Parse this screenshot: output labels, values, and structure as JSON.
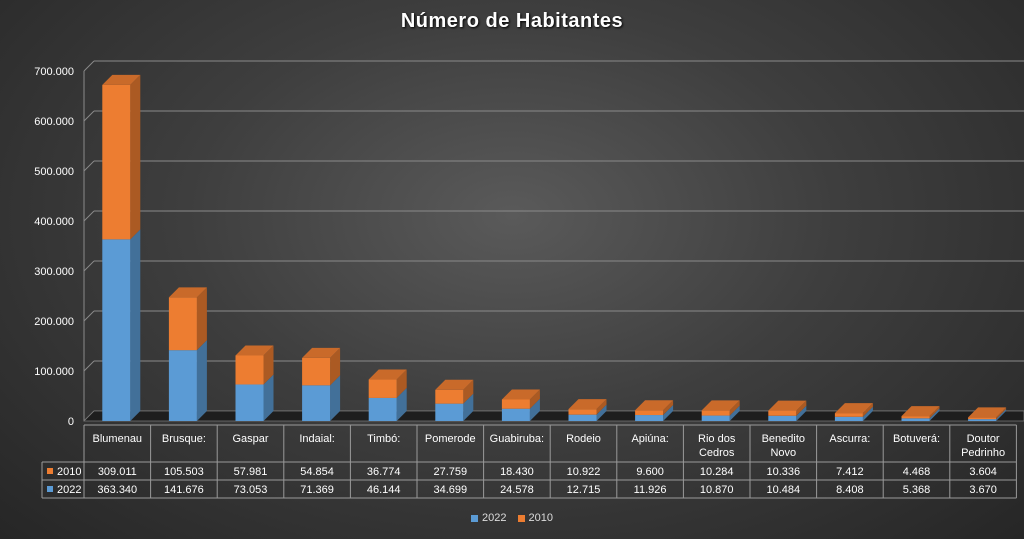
{
  "chart_data": {
    "type": "bar",
    "stacked": true,
    "three_d": true,
    "title": "Número de Habitantes",
    "categories": [
      "Blumenau",
      "Brusque:",
      "Gaspar",
      "Indaial:",
      "Timbó:",
      "Pomerode",
      "Guabiruba:",
      "Rodeio",
      "Apiúna:",
      "Rio dos Cedros",
      "Benedito Novo",
      "Ascurra:",
      "Botuverá:",
      "Doutor Pedrinho"
    ],
    "category_lines": [
      [
        "Blumenau"
      ],
      [
        "Brusque:"
      ],
      [
        "Gaspar"
      ],
      [
        "Indaial:"
      ],
      [
        "Timbó:"
      ],
      [
        "Pomerode"
      ],
      [
        "Guabiruba:"
      ],
      [
        "Rodeio"
      ],
      [
        "Apiúna:"
      ],
      [
        "Rio dos",
        "Cedros"
      ],
      [
        "Benedito",
        "Novo"
      ],
      [
        "Ascurra:"
      ],
      [
        "Botuverá:"
      ],
      [
        "Doutor",
        "Pedrinho"
      ]
    ],
    "series": [
      {
        "name": "2022",
        "color": "#5b9bd5",
        "values": [
          363340,
          141676,
          73053,
          71369,
          46144,
          34699,
          24578,
          12715,
          11926,
          10870,
          10484,
          8408,
          5368,
          3670
        ],
        "labels": [
          "363.340",
          "141.676",
          "73.053",
          "71.369",
          "46.144",
          "34.699",
          "24.578",
          "12.715",
          "11.926",
          "10.870",
          "10.484",
          "8.408",
          "5.368",
          "3.670"
        ]
      },
      {
        "name": "2010",
        "color": "#ed7d31",
        "values": [
          309011,
          105503,
          57981,
          54854,
          36774,
          27759,
          18430,
          10922,
          9600,
          10284,
          10336,
          7412,
          4468,
          3604
        ],
        "labels": [
          "309.011",
          "105.503",
          "57.981",
          "54.854",
          "36.774",
          "27.759",
          "18.430",
          "10.922",
          "9.600",
          "10.284",
          "10.336",
          "7.412",
          "4.468",
          "3.604"
        ]
      }
    ],
    "table_row_order": [
      "2010",
      "2022"
    ],
    "ylim": [
      0,
      700000
    ],
    "yticks": [
      0,
      100000,
      200000,
      300000,
      400000,
      500000,
      600000,
      700000
    ],
    "ytick_labels": [
      "0",
      "100.000",
      "200.000",
      "300.000",
      "400.000",
      "500.000",
      "600.000",
      "700.000"
    ],
    "grid": true,
    "legend_position": "bottom",
    "data_table": true
  }
}
